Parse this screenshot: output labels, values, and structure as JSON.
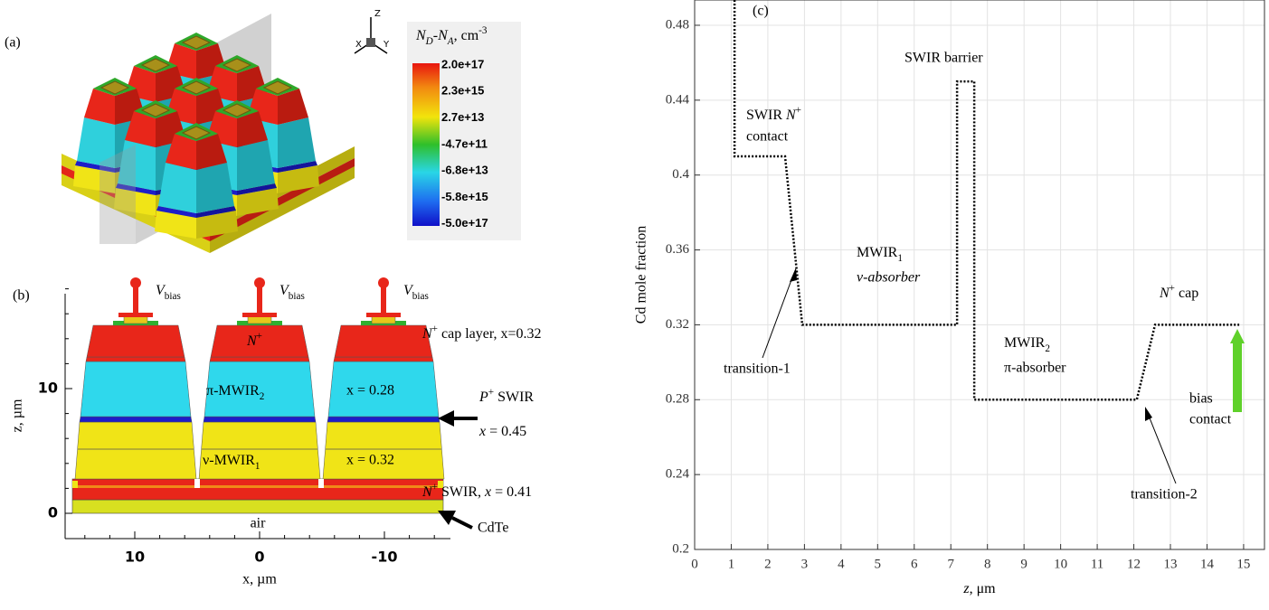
{
  "panel_a": {
    "label": "(a)",
    "axes": [
      "Z",
      "X",
      "Y"
    ],
    "colorbar": {
      "title": {
        "main": "N",
        "sub1": "D",
        "mid": "-N",
        "sub2": "A",
        "unit": ", cm",
        "sup": "-3"
      },
      "ticks": [
        "2.0e+17",
        "2.3e+15",
        "2.7e+13",
        "-4.7e+11",
        "-6.8e+13",
        "-5.8e+15",
        "-5.0e+17"
      ]
    }
  },
  "panel_b": {
    "label": "(b)",
    "bias": {
      "v": "V",
      "sub": "bias"
    },
    "n_plus": {
      "text": "N",
      "sup": "+"
    },
    "pi_mwir": {
      "text": "π-MWIR",
      "sub": "2"
    },
    "x_pi": "x = 0.28",
    "nu_mwir": {
      "text": "ν-MWIR",
      "sub": "1"
    },
    "x_nu": "x = 0.32",
    "cap": {
      "var": "N",
      "sup": "+",
      "text": " cap layer, x=0.32"
    },
    "p_swir": {
      "var": "P",
      "sup": "+",
      "text": " SWIR",
      "var2": "x",
      "text2": " = 0.45"
    },
    "n_swir": {
      "var": "N",
      "sup": "+",
      "text": " SWIR, ",
      "var2": "x",
      "text2": " = 0.41"
    },
    "cdte": "CdTe",
    "air": "air",
    "yticks": [
      0,
      10
    ],
    "xticks": [
      10,
      0,
      -10
    ],
    "ylabel": "z, µm",
    "xlabel": "x, µm"
  },
  "chart_data": {
    "type": "line",
    "panel_label": "(c)",
    "ylabel": "Cd mole fraction",
    "xlabel": {
      "var": "z",
      "unit": ",  μm"
    },
    "x": [
      1.09,
      1.09,
      2.47,
      2.94,
      7.17,
      7.17,
      7.64,
      7.64,
      12.08,
      12.58,
      14.88
    ],
    "values": [
      0.4935,
      0.41,
      0.41,
      0.32,
      0.32,
      0.45,
      0.45,
      0.28,
      0.28,
      0.32,
      0.32
    ],
    "color": "#000000",
    "dotted": true,
    "grid": true,
    "xlim": [
      0,
      15.57
    ],
    "ylim": [
      0.2,
      0.4935
    ],
    "xticks": [
      0,
      1,
      2,
      3,
      4,
      5,
      6,
      7,
      8,
      9,
      10,
      11,
      12,
      13,
      14,
      15
    ],
    "yticks": [
      0.2,
      0.24,
      0.28,
      0.32,
      0.36,
      0.4,
      0.44,
      0.48
    ],
    "annotations": {
      "swir_barrier": "SWIR barrier",
      "swir_contact": {
        "text": "SWIR ",
        "var": "N",
        "sup": "+",
        "line2": "contact"
      },
      "mwir1": {
        "text": "MWIR",
        "sub": "1",
        "line2": "ν-absorber",
        "color": "#1c1cd8"
      },
      "mwir2": {
        "text": "MWIR",
        "sub": "2",
        "line2": "π-absorber",
        "color": "#e01010"
      },
      "cap": {
        "var": "N",
        "sup": "+",
        "text": " cap"
      },
      "bias": {
        "line1": "bias",
        "line2": "contact"
      },
      "transition1": "transition-1",
      "transition2": "transition-2"
    }
  }
}
